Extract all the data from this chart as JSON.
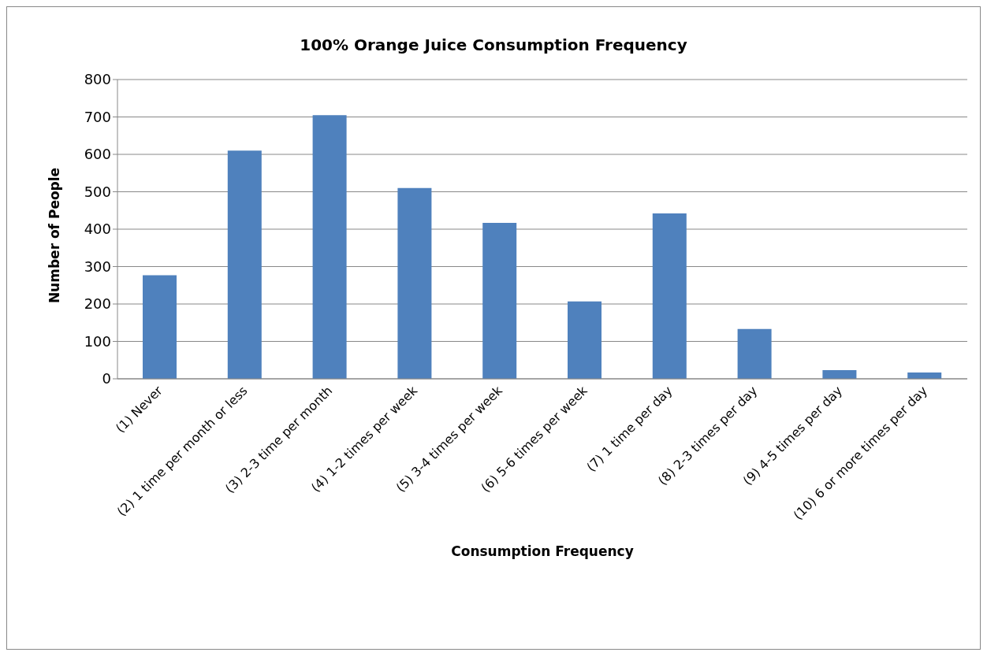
{
  "chart_data": {
    "type": "bar",
    "title": "100% Orange Juice Consumption  Frequency",
    "xlabel": "Consumption Frequency",
    "ylabel": "Number of People",
    "categories": [
      "(1) Never",
      "(2) 1 time per month or less",
      "(3) 2-3 time per month",
      "(4) 1-2 times per week",
      "(5) 3-4 times per week",
      "(6) 5-6 times per week",
      "(7) 1 time per day",
      "(8) 2-3 times per day",
      "(9) 4-5 times per day",
      "(10) 6 or more times per day"
    ],
    "values": [
      277,
      610,
      705,
      510,
      417,
      207,
      442,
      133,
      23,
      17
    ],
    "color": "#4f81bd",
    "ylim": [
      0,
      800
    ],
    "yticks": [
      0,
      100,
      200,
      300,
      400,
      500,
      600,
      700,
      800
    ],
    "grid": "y"
  }
}
